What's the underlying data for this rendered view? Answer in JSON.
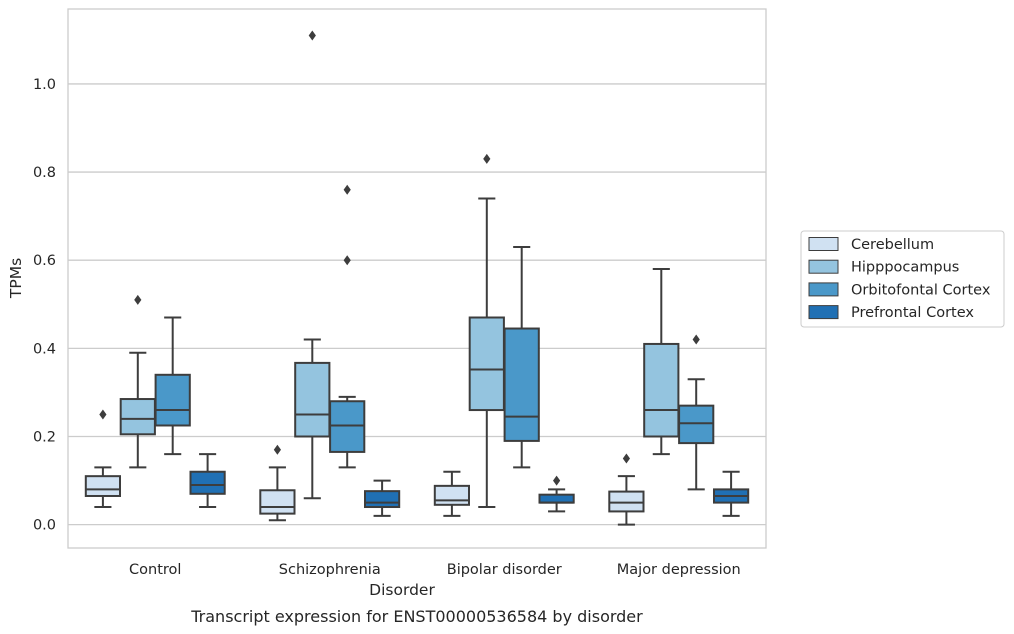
{
  "chart_data": {
    "type": "box",
    "caption": "Transcript expression for ENST00000536584 by disorder",
    "xlabel": "Disorder",
    "ylabel": "TPMs",
    "ylim": [
      -0.053,
      1.17
    ],
    "yticks": [
      "0.0",
      "0.2",
      "0.4",
      "0.6",
      "0.8",
      "1.0"
    ],
    "grid": "horizontal",
    "legend_position": "right",
    "categories": [
      "Control",
      "Schizophrenia",
      "Bipolar disorder",
      "Major depression"
    ],
    "series": [
      {
        "name": "Cerebellum",
        "color": "#d0e1f2",
        "boxes": [
          {
            "whisker_low": 0.04,
            "q1": 0.065,
            "median": 0.08,
            "q3": 0.11,
            "whisker_high": 0.13,
            "outliers": [
              0.25
            ]
          },
          {
            "whisker_low": 0.01,
            "q1": 0.025,
            "median": 0.04,
            "q3": 0.078,
            "whisker_high": 0.13,
            "outliers": [
              0.17
            ]
          },
          {
            "whisker_low": 0.02,
            "q1": 0.045,
            "median": 0.055,
            "q3": 0.088,
            "whisker_high": 0.12,
            "outliers": []
          },
          {
            "whisker_low": 0.0,
            "q1": 0.03,
            "median": 0.05,
            "q3": 0.075,
            "whisker_high": 0.11,
            "outliers": [
              0.15
            ]
          }
        ]
      },
      {
        "name": "Hipppocampus",
        "color": "#94c4df",
        "boxes": [
          {
            "whisker_low": 0.13,
            "q1": 0.205,
            "median": 0.24,
            "q3": 0.285,
            "whisker_high": 0.39,
            "outliers": [
              0.51
            ]
          },
          {
            "whisker_low": 0.06,
            "q1": 0.2,
            "median": 0.25,
            "q3": 0.367,
            "whisker_high": 0.42,
            "outliers": [
              1.11
            ]
          },
          {
            "whisker_low": 0.04,
            "q1": 0.26,
            "median": 0.352,
            "q3": 0.47,
            "whisker_high": 0.74,
            "outliers": [
              0.83
            ]
          },
          {
            "whisker_low": 0.16,
            "q1": 0.2,
            "median": 0.26,
            "q3": 0.41,
            "whisker_high": 0.58,
            "outliers": []
          }
        ]
      },
      {
        "name": "Orbitofontal Cortex",
        "color": "#4a98c9",
        "boxes": [
          {
            "whisker_low": 0.16,
            "q1": 0.225,
            "median": 0.26,
            "q3": 0.34,
            "whisker_high": 0.47,
            "outliers": []
          },
          {
            "whisker_low": 0.13,
            "q1": 0.165,
            "median": 0.225,
            "q3": 0.28,
            "whisker_high": 0.29,
            "outliers": [
              0.6,
              0.76
            ]
          },
          {
            "whisker_low": 0.13,
            "q1": 0.19,
            "median": 0.245,
            "q3": 0.445,
            "whisker_high": 0.63,
            "outliers": []
          },
          {
            "whisker_low": 0.08,
            "q1": 0.185,
            "median": 0.23,
            "q3": 0.27,
            "whisker_high": 0.33,
            "outliers": [
              0.42
            ]
          }
        ]
      },
      {
        "name": "Prefrontal Cortex",
        "color": "#2070b4",
        "boxes": [
          {
            "whisker_low": 0.04,
            "q1": 0.07,
            "median": 0.09,
            "q3": 0.12,
            "whisker_high": 0.16,
            "outliers": []
          },
          {
            "whisker_low": 0.02,
            "q1": 0.04,
            "median": 0.05,
            "q3": 0.076,
            "whisker_high": 0.1,
            "outliers": []
          },
          {
            "whisker_low": 0.03,
            "q1": 0.05,
            "median": 0.05,
            "q3": 0.068,
            "whisker_high": 0.08,
            "outliers": [
              0.1
            ]
          },
          {
            "whisker_low": 0.02,
            "q1": 0.05,
            "median": 0.065,
            "q3": 0.08,
            "whisker_high": 0.12,
            "outliers": []
          }
        ]
      }
    ]
  }
}
